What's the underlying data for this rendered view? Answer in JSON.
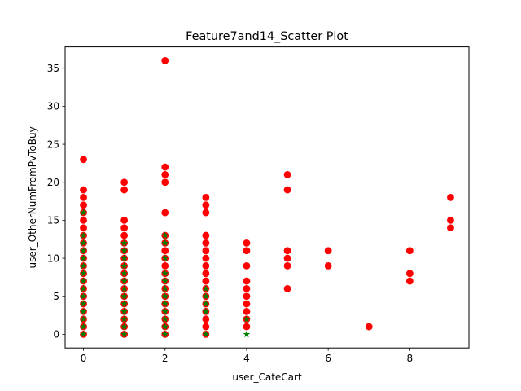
{
  "chart_data": {
    "type": "scatter",
    "title": "Feature7and14_Scatter Plot",
    "xlabel": "user_CateCart",
    "ylabel": "user_OtherNumFromPvToBuy",
    "xlim": [
      -0.45,
      9.45
    ],
    "ylim": [
      -1.8,
      37.8
    ],
    "xticks": [
      0,
      2,
      4,
      6,
      8
    ],
    "yticks": [
      0,
      5,
      10,
      15,
      20,
      25,
      30,
      35
    ],
    "grid": false,
    "colors": {
      "series_0": "#ff0000",
      "series_1": "#008000"
    },
    "series": [
      {
        "marker": "circle",
        "color": "#ff0000",
        "points": [
          [
            0,
            0
          ],
          [
            0,
            1
          ],
          [
            0,
            2
          ],
          [
            0,
            3
          ],
          [
            0,
            4
          ],
          [
            0,
            5
          ],
          [
            0,
            6
          ],
          [
            0,
            7
          ],
          [
            0,
            8
          ],
          [
            0,
            9
          ],
          [
            0,
            10
          ],
          [
            0,
            11
          ],
          [
            0,
            12
          ],
          [
            0,
            13
          ],
          [
            0,
            14
          ],
          [
            0,
            15
          ],
          [
            0,
            16
          ],
          [
            0,
            17
          ],
          [
            0,
            18
          ],
          [
            0,
            19
          ],
          [
            0,
            23
          ],
          [
            1,
            0
          ],
          [
            1,
            1
          ],
          [
            1,
            2
          ],
          [
            1,
            3
          ],
          [
            1,
            4
          ],
          [
            1,
            5
          ],
          [
            1,
            6
          ],
          [
            1,
            7
          ],
          [
            1,
            8
          ],
          [
            1,
            9
          ],
          [
            1,
            10
          ],
          [
            1,
            11
          ],
          [
            1,
            12
          ],
          [
            1,
            13
          ],
          [
            1,
            14
          ],
          [
            1,
            15
          ],
          [
            1,
            19
          ],
          [
            1,
            20
          ],
          [
            2,
            0
          ],
          [
            2,
            1
          ],
          [
            2,
            2
          ],
          [
            2,
            3
          ],
          [
            2,
            4
          ],
          [
            2,
            5
          ],
          [
            2,
            6
          ],
          [
            2,
            7
          ],
          [
            2,
            8
          ],
          [
            2,
            9
          ],
          [
            2,
            10
          ],
          [
            2,
            11
          ],
          [
            2,
            12
          ],
          [
            2,
            13
          ],
          [
            2,
            16
          ],
          [
            2,
            20
          ],
          [
            2,
            21
          ],
          [
            2,
            22
          ],
          [
            2,
            36
          ],
          [
            3,
            0
          ],
          [
            3,
            1
          ],
          [
            3,
            2
          ],
          [
            3,
            3
          ],
          [
            3,
            4
          ],
          [
            3,
            5
          ],
          [
            3,
            6
          ],
          [
            3,
            7
          ],
          [
            3,
            8
          ],
          [
            3,
            9
          ],
          [
            3,
            10
          ],
          [
            3,
            11
          ],
          [
            3,
            12
          ],
          [
            3,
            13
          ],
          [
            3,
            16
          ],
          [
            3,
            17
          ],
          [
            3,
            18
          ],
          [
            4,
            1
          ],
          [
            4,
            2
          ],
          [
            4,
            3
          ],
          [
            4,
            4
          ],
          [
            4,
            5
          ],
          [
            4,
            6
          ],
          [
            4,
            7
          ],
          [
            4,
            9
          ],
          [
            4,
            11
          ],
          [
            4,
            12
          ],
          [
            5,
            6
          ],
          [
            5,
            9
          ],
          [
            5,
            10
          ],
          [
            5,
            11
          ],
          [
            5,
            19
          ],
          [
            5,
            21
          ],
          [
            6,
            9
          ],
          [
            6,
            11
          ],
          [
            7,
            1
          ],
          [
            8,
            7
          ],
          [
            8,
            8
          ],
          [
            8,
            11
          ],
          [
            9,
            14
          ],
          [
            9,
            15
          ],
          [
            9,
            18
          ]
        ]
      },
      {
        "marker": "star",
        "color": "#008000",
        "points": [
          [
            0,
            0
          ],
          [
            0,
            1
          ],
          [
            0,
            2
          ],
          [
            0,
            3
          ],
          [
            0,
            4
          ],
          [
            0,
            5
          ],
          [
            0,
            6
          ],
          [
            0,
            7
          ],
          [
            0,
            8
          ],
          [
            0,
            9
          ],
          [
            0,
            10
          ],
          [
            0,
            11
          ],
          [
            0,
            12
          ],
          [
            0,
            13
          ],
          [
            0,
            16
          ],
          [
            1,
            0
          ],
          [
            1,
            1
          ],
          [
            1,
            2
          ],
          [
            1,
            3
          ],
          [
            1,
            4
          ],
          [
            1,
            5
          ],
          [
            1,
            6
          ],
          [
            1,
            7
          ],
          [
            1,
            8
          ],
          [
            1,
            9
          ],
          [
            1,
            10
          ],
          [
            1,
            11
          ],
          [
            1,
            12
          ],
          [
            2,
            0
          ],
          [
            2,
            1
          ],
          [
            2,
            2
          ],
          [
            2,
            3
          ],
          [
            2,
            4
          ],
          [
            2,
            5
          ],
          [
            2,
            6
          ],
          [
            2,
            7
          ],
          [
            2,
            8
          ],
          [
            2,
            10
          ],
          [
            2,
            12
          ],
          [
            2,
            13
          ],
          [
            3,
            0
          ],
          [
            3,
            3
          ],
          [
            3,
            4
          ],
          [
            3,
            5
          ],
          [
            3,
            6
          ],
          [
            4,
            0
          ],
          [
            4,
            2
          ]
        ]
      }
    ]
  }
}
